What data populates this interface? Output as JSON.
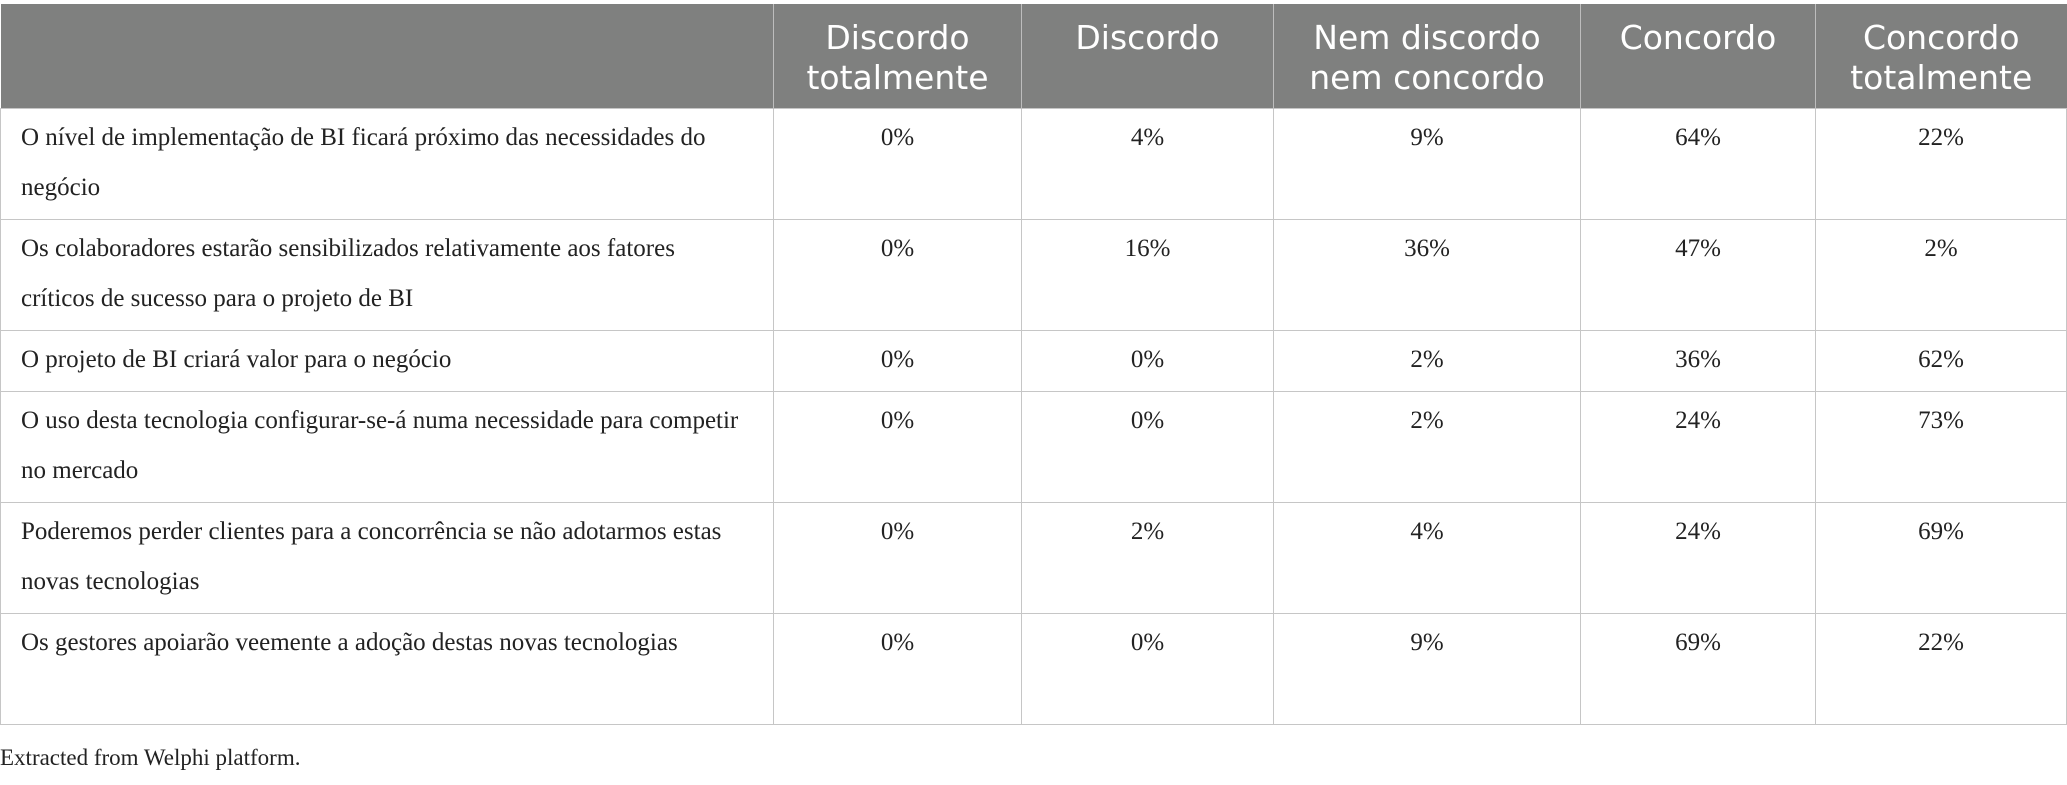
{
  "table": {
    "headers": [
      "",
      "Discordo totalmente",
      "Discordo",
      "Nem discordo nem concordo",
      "Concordo",
      "Concordo totalmente"
    ],
    "rows": [
      {
        "statement": "O nível de implementação de BI ficará próximo das necessidades do negócio",
        "values": [
          "0%",
          "4%",
          "9%",
          "64%",
          "22%"
        ]
      },
      {
        "statement": "Os colaboradores estarão sensibilizados relativamente aos fatores críticos de sucesso para o projeto de BI",
        "values": [
          "0%",
          "16%",
          "36%",
          "47%",
          "2%"
        ]
      },
      {
        "statement": "O projeto de BI criará valor para o negócio",
        "values": [
          "0%",
          "0%",
          "2%",
          "36%",
          "62%"
        ]
      },
      {
        "statement": "O uso desta tecnologia configurar-se-á numa necessidade para competir no mercado",
        "values": [
          "0%",
          "0%",
          "2%",
          "24%",
          "73%"
        ]
      },
      {
        "statement": "Poderemos perder clientes para a concorrência se não adotarmos estas novas tecnologias",
        "values": [
          "0%",
          "2%",
          "4%",
          "24%",
          "69%"
        ]
      },
      {
        "statement": "Os gestores apoiarão veemente a adoção destas novas tecnologias",
        "values": [
          "0%",
          "0%",
          "9%",
          "69%",
          "22%"
        ]
      }
    ]
  },
  "footnote": "Extracted from Welphi platform.",
  "colors": {
    "header_background": "#7f807f",
    "header_text": "#ffffff",
    "grid_lines": "#c6c6c6"
  }
}
